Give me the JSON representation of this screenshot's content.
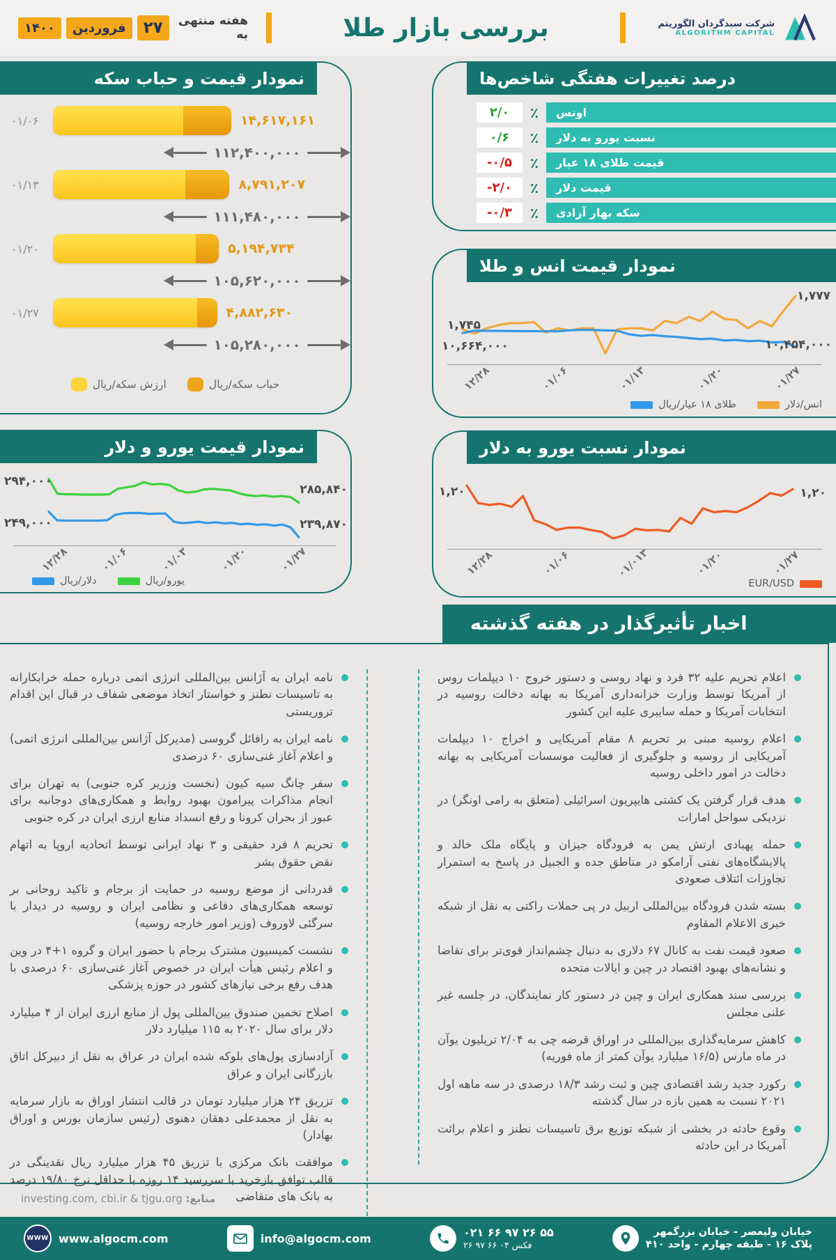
{
  "header": {
    "title": "بررسی بازار طلا",
    "date_prefix": "هفته منتهی به",
    "date_day": "۲۷",
    "date_month": "فروردین",
    "date_year": "۱۴۰۰",
    "logo_fa": "شرکت سبدگردان الگوریتم",
    "logo_en": "ALGORITHM CAPITAL"
  },
  "indicators": {
    "title": "درصد تغییرات هفتگی شاخص‌ها",
    "percent_sign": "٪",
    "rows": [
      {
        "label": "اونس",
        "value": "۲/۰",
        "trend": "up"
      },
      {
        "label": "نسبت یورو به دلار",
        "value": "۰/۶",
        "trend": "up"
      },
      {
        "label": "قیمت طلای ۱۸ عیار",
        "value": "-۰/۵",
        "trend": "down"
      },
      {
        "label": "قیمت دلار",
        "value": "-۲/۰",
        "trend": "down"
      },
      {
        "label": "سکه بهار آزادی",
        "value": "-۰/۳",
        "trend": "down"
      }
    ]
  },
  "chart_data": [
    {
      "id": "coin_price_bubble",
      "type": "bar",
      "title": "نمودار قیمت و حباب سکه",
      "rows": [
        {
          "date": "۰۱/۰۶",
          "bubble": "۱۴,۶۱۷,۱۶۱",
          "price": "۱۱۲,۴۰۰,۰۰۰",
          "bar_pct": 100,
          "bubble_pct": 27
        },
        {
          "date": "۰۱/۱۳",
          "bubble": "۸,۷۹۱,۲۰۷",
          "price": "۱۱۱,۴۸۰,۰۰۰",
          "bar_pct": 99,
          "bubble_pct": 25
        },
        {
          "date": "۰۱/۲۰",
          "bubble": "۵,۱۹۴,۷۳۴",
          "price": "۱۰۵,۶۲۰,۰۰۰",
          "bar_pct": 93,
          "bubble_pct": 14
        },
        {
          "date": "۰۱/۲۷",
          "bubble": "۴,۸۸۲,۶۳۰",
          "price": "۱۰۵,۲۸۰,۰۰۰",
          "bar_pct": 92,
          "bubble_pct": 12
        }
      ],
      "legend": [
        {
          "label": "حباب سکه/ریال",
          "color": "#EDA51C"
        },
        {
          "label": "ارزش سکه/ریال",
          "color": "#FFD33A"
        }
      ]
    },
    {
      "id": "ounce_gold",
      "type": "line",
      "title": "نمودار قیمت انس و طلا",
      "x_labels": [
        "۱۲/۲۸",
        "۰۱/۰۶",
        "۰۱/۱۳",
        "۰۱/۲۰",
        "۰۱/۲۷"
      ],
      "series": [
        {
          "name": "انس/دلار",
          "color": "#F2A93B",
          "start_label": "۱,۷۴۵",
          "end_label": "۱,۷۷۷",
          "band": [
            0.04,
            0.92
          ],
          "values": [
            1745,
            1741,
            1746,
            1749,
            1751,
            1751,
            1752,
            1742,
            1746,
            1744,
            1746,
            1746,
            1722,
            1745,
            1746,
            1746,
            1744,
            1753,
            1751,
            1757,
            1753,
            1762,
            1755,
            1754,
            1746,
            1753,
            1748,
            1763,
            1777
          ]
        },
        {
          "name": "طلای ۱۸ عیار/ریال",
          "color": "#3398E8",
          "start_label": "۱۰,۶۶۴,۰۰۰",
          "end_label": "۱۰,۴۵۴,۰۰۰",
          "band": [
            0.56,
            0.82
          ],
          "values": [
            10664,
            10700,
            10698,
            10696,
            10695,
            10694,
            10693,
            10692,
            10690,
            10706,
            10712,
            10710,
            10705,
            10700,
            10645,
            10622,
            10634,
            10616,
            10606,
            10588,
            10572,
            10580,
            10552,
            10560,
            10542,
            10548,
            10522,
            10530,
            10454
          ]
        }
      ]
    },
    {
      "id": "eur_usd",
      "type": "line",
      "title": "نمودار نسبت یورو به دلار",
      "x_labels": [
        "۱۲/۲۸",
        "۰۱/۰۶",
        "۰۱/۰۱۳",
        "۰۱/۲۰",
        "۰۱/۲۷"
      ],
      "series": [
        {
          "name": "EUR/USD",
          "color": "#EE5B24",
          "start_label": "۱,۲۰",
          "end_label": "۱,۲۰",
          "band": [
            0.06,
            0.92
          ],
          "values": [
            1.2005,
            1.196,
            1.1955,
            1.1958,
            1.195,
            1.1978,
            1.1915,
            1.1905,
            1.189,
            1.1896,
            1.1896,
            1.189,
            1.1885,
            1.1868,
            1.1876,
            1.1893,
            1.1889,
            1.189,
            1.1886,
            1.1921,
            1.1906,
            1.1946,
            1.1936,
            1.1939,
            1.1936,
            1.1949,
            1.1966,
            1.1986,
            1.1979,
            1.1996
          ]
        }
      ]
    },
    {
      "id": "euro_dollar",
      "type": "line",
      "title": "نمودار قیمت یورو و دلار",
      "x_labels": [
        "۱۲/۲۸",
        "۰۱/۰۶",
        "۰۱/۰۳",
        "۰۱/۲۰",
        "۰۱/۲۷"
      ],
      "series": [
        {
          "name": "یورو/ریال",
          "color": "#39D23C",
          "start_label": "۲۹۴,۰۰۰",
          "end_label": "۲۸۵,۸۴۰",
          "band": [
            0.05,
            0.42
          ],
          "values": [
            294,
            288.9,
            288.7,
            288.7,
            288.6,
            288.6,
            288.6,
            288.7,
            290.6,
            291.1,
            291.6,
            292.9,
            292.1,
            292.3,
            291.9,
            290.1,
            289.3,
            289.6,
            290.4,
            290.6,
            290.3,
            290.1,
            289.1,
            288.4,
            288.1,
            288.3,
            287.9,
            288.1,
            287.8,
            285.84
          ]
        },
        {
          "name": "دلار/ریال",
          "color": "#3398E8",
          "start_label": "۲۴۹,۰۰۰",
          "end_label": "۲۳۹,۸۷۰",
          "band": [
            0.56,
            0.96
          ],
          "values": [
            249,
            245.9,
            245.8,
            245.8,
            245.8,
            245.8,
            245.8,
            245.9,
            247.9,
            248.4,
            248.5,
            248.5,
            248.2,
            248.3,
            248.3,
            245.4,
            244.9,
            245.1,
            245.4,
            244.9,
            245.2,
            244.8,
            245.0,
            244.5,
            244.7,
            244.3,
            244.5,
            244.0,
            244.4,
            243.4,
            239.87
          ]
        }
      ]
    }
  ],
  "news": {
    "title": "اخبار تأثیرگذار در هفته گذشته",
    "right_column": [
      "اعلام تحریم علیه ۳۲ فرد و نهاد روسی و دستور خروج ۱۰ دیپلمات روس از آمریکا توسط وزارت خزانه‌داری آمریکا به بهانه دخالت روسیه در انتخابات آمریکا و حمله سایبری علیه این کشور",
      "اعلام روسیه مبنی بر تحریم ۸ مقام آمریکایی و اخراج ۱۰ دیپلمات آمریکایی از روسیه و جلوگیری از فعالیت موسسات آمریکایی به بهانه دخالت در امور داخلی روسیه",
      "هدف قرار گرفتن یک کشتی هایپریون اسرائیلی (متعلق به رامی اونگر) در نزدیکی سواحل امارات",
      "حمله پهبادی ارتش یمن به فرودگاه جیزان و پایگاه ملک خالد و پالایشگاه‌های نفتی آرامکو در مناطق جده و الجبیل در پاسخ به استمرار تجاوزات ائتلاف صعودی",
      "بسته شدن فرودگاه بین‌المللی اربیل در پی حملات راکتی به نقل از شبکه خبری الاعلام المقاوم",
      "صعود قیمت نفت به کانال ۶۷ دلاری به دنبال چشم‌انداز قوی‌تر برای تقاضا و نشانه‌های بهبود اقتصاد در چین و ایالات متحده",
      "بررسی سند همکاری ایران و چین در دستور کار نمایندگان، در جلسه غیر علنی مجلس",
      "کاهش سرمایه‌گذاری بین‌المللی در اوراق قرضه چی به ۲/۰۴ تریلیون یوآن در ماه مارس (۱۶/۵ میلیارد یوآن کمتر از ماه فوریه)",
      "رکورد جدید رشد اقتصادی چین و ثبت رشد ۱۸/۳ درصدی در سه ماهه اول ۲۰۲۱ نسبت به همین بازه در سال گذشته",
      "وقوع حادثه در بخشی از شبکه توزیع برق تاسیسات نطنز و اعلام برائت آمریکا در این حادثه"
    ],
    "left_column": [
      "نامه ایران به آژانس بین‌المللی انرژی اتمی درباره حمله خرابکارانه به تاسیسات نطنز و خواستار اتخاذ موضعی شفاف در قبال این اقدام تروریستی",
      "نامه ایران به رافائل گروسی (مدیرکل آژانس بین‌المللی انرژی اتمی) و اعلام آغاز غنی‌سازی ۶۰ درصدی",
      "سفر چانگ سیه کیون (نخست وزریر کره جنوبی) به تهران برای انجام مذاکرات پیرامون بهبود روابط و همکاری‌های دوجانبه برای عبور از بحران کرونا و رفع انسداد منابع ارزی ایران در کره جنوبی",
      "تحریم ۸ فرد حقیقی و ۳ نهاد ایرانی توسط اتحادیه اروپا به اتهام نقض حقوق بشر",
      "قدردانی از موضع روسیه در حمایت از برجام و تاکید روحانی بر توسعه همکاری‌های دفاعی و نظامی ایران و روسیه در دیدار با سرگئی لاوروف (وزیر امور خارجه روسیه)",
      "نشست کمیسیون مشترک برجام با حضور ایران و گروه ۱+۴ در وین و اعلام رئیس هیأت ایران در خصوص آغاز غنی‌سازی ۶۰ درصدی با هدف رفع برخی نیازهای کشور در حوزه پزشکی",
      "اصلاح تخمین صندوق بین‌المللی پول از منابع ارزی ایران از ۴ میلیارد دلار برای سال ۲۰۲۰ به ۱۱۵ میلیارد دلار",
      "آزادسازی پول‌های بلوکه شده ایران در عراق به نقل از دبیرکل اتاق بازرگانی ایران و عراق",
      "تزریق ۲۴ هزار میلیارد تومان در قالب انتشار اوراق به بازار سرمایه به نقل از محمدعلی دهقان دهنوی (رئیس سازمان بورس و اوراق بهادار)",
      "موافقت بانک مرکزی با تزریق ۴۵ هزار میلیارد ریال نقدینگی در قالب توافق بازخرید با سررسید ۱۴ روزه با حداقل نرخ ۱۹/۸۰ درصد به بانک های متقاضی"
    ]
  },
  "footer": {
    "sources_label": "منابع:",
    "sources": "investing.com, cbi.ir & tjgu.org",
    "website": "www.algocm.com",
    "www_icon_text": "WWW",
    "email": "info@algocm.com",
    "phone": "۰۲۱ ۶۶ ۹۷ ۲۶ ۵۵",
    "fax": "فکس ۰۴ ۶۶ ۹۷ ۲۶",
    "address_line1": "خیابان ولیعصر - خیابان بزرگمهر",
    "address_line2": "پلاک ۱۶ - طبقه چهارم - واحد ۴۱۰"
  },
  "colors": {
    "teal_dark": "#15756E",
    "teal_light": "#2FBCB2",
    "amber": "#F2A716",
    "bar_yellow": "#FFD33A",
    "bar_orange": "#EDA51C",
    "positive_green": "#2BA32E",
    "negative_red": "#D8201D",
    "blue_line": "#3398E8",
    "green_line": "#39D23C",
    "orange_line": "#F2A93B",
    "eurusd_line": "#EE5B24"
  }
}
